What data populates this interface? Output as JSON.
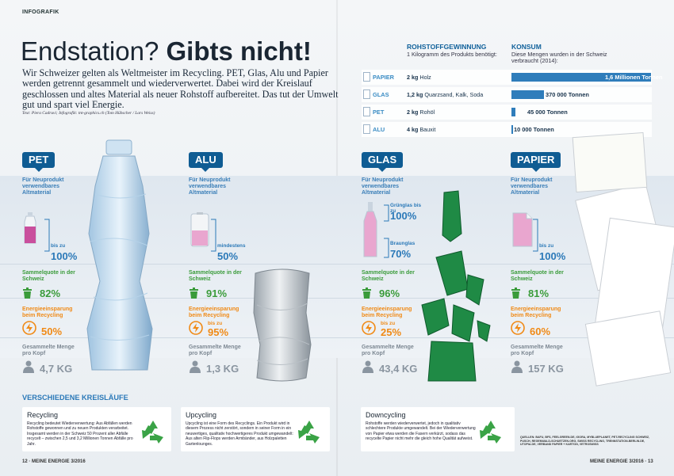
{
  "kicker": "INFOGRAFIK",
  "headline": {
    "part1": "Endstation?",
    "part2": "Gibts nicht!"
  },
  "lead": "Wir Schweizer gelten als Weltmeister im Recycling. PET, Glas, Alu und Papier werden getrennt gesammelt und wiederverwertet. Dabei wird der Kreislauf geschlossen und altes Material als neuer Rohstoff aufbereitet. Das tut der Umwelt gut und spart viel Energie.",
  "credit": "Text: Piera Cadruvi; Infografik: tnt-graphics.ch (Tom Hübscher / Lars Weiss)",
  "table": {
    "col1_title": "ROHSTOFFGEWINNUNG",
    "col1_sub": "1 Kilogramm des Produkts benötigt:",
    "col2_title": "KONSUM",
    "col2_sub": "Diese Mengen wurden in der Schweiz verbraucht (2014):",
    "rows": [
      {
        "label": "PAPIER",
        "amount": "2 kg",
        "material": "Holz",
        "consumption": "1,6 Millionen Tonnen",
        "tonnes": 1600000
      },
      {
        "label": "GLAS",
        "amount": "1,2 kg",
        "material": "Quarzsand, Kalk, Soda",
        "consumption": "370 000 Tonnen",
        "tonnes": 370000
      },
      {
        "label": "PET",
        "amount": "2 kg",
        "material": "Rohöl",
        "consumption": "45 000 Tonnen",
        "tonnes": 45000
      },
      {
        "label": "ALU",
        "amount": "4 kg",
        "material": "Bauxit",
        "consumption": "10 000 Tonnen",
        "tonnes": 10000
      }
    ]
  },
  "materials": [
    {
      "tag": "PET",
      "reuse_label": "Für Neuprodukt verwendbares Altmaterial",
      "reuse_prefix": "bis zu",
      "reuse_pct": "100%",
      "reuse_fill": 1.0,
      "quota_label": "Sammelquote in der Schweiz",
      "quota": "82%",
      "energy_label": "Energieeinsparung beim Recycling",
      "energy_prefix": "",
      "energy": "50%",
      "amount_label": "Gesammelte Menge pro Kopf",
      "amount": "4,7 KG"
    },
    {
      "tag": "ALU",
      "reuse_label": "Für Neuprodukt verwendbares Altmaterial",
      "reuse_prefix": "mindestens",
      "reuse_pct": "50%",
      "reuse_fill": 0.5,
      "quota_label": "Sammelquote in der Schweiz",
      "quota": "91%",
      "energy_label": "Energieeinsparung beim Recycling",
      "energy_prefix": "bis zu",
      "energy": "95%",
      "amount_label": "Gesammelte Menge pro Kopf",
      "amount": "1,3 KG"
    },
    {
      "tag": "GLAS",
      "reuse_label": "Für Neuprodukt verwendbares Altmaterial",
      "reuse_prefix": "Grünglas bis zu",
      "reuse_pct": "100%",
      "reuse_fill": 1.0,
      "reuse_extra_label": "Braunglas",
      "reuse_extra": "70%",
      "quota_label": "Sammelquote in der Schweiz",
      "quota": "96%",
      "energy_label": "Energieeinsparung beim Recycling",
      "energy_prefix": "bis zu",
      "energy": "25%",
      "amount_label": "Gesammelte Menge pro Kopf",
      "amount": "43,4 KG"
    },
    {
      "tag": "PAPIER",
      "reuse_label": "Für Neuprodukt verwendbares Altmaterial",
      "reuse_prefix": "bis zu",
      "reuse_pct": "100%",
      "reuse_fill": 1.0,
      "quota_label": "Sammelquote in der Schweiz",
      "quota": "81%",
      "energy_label": "Energieeinsparung beim Recycling",
      "energy_prefix": "",
      "energy": "60%",
      "amount_label": "Gesammelte Menge pro Kopf",
      "amount": "157 KG"
    }
  ],
  "cycles": {
    "title": "VERSCHIEDENE KREISLÄUFE",
    "items": [
      {
        "title": "Recycling",
        "text": "Recycling bedeutet Wiederverwertung: Aus Abfällen werden Rohstoffe gewonnen und zu neuen Produkten verarbeitet. Insgesamt werden in der Schweiz 50 Prozent aller Abfälle recycelt – zwischen 2,5 und 3,2 Millionen Tonnen Abfälle pro Jahr."
      },
      {
        "title": "Upcycling",
        "text": "Upcycling ist eine Form des Recyclings. Ein Produkt wird in diesem Prozess nicht zerstört, sondern in seiner Form in ein neuwertiges, qualitativ hochwertigeres Produkt umgewandelt: Aus alten Flip-Flops werden Armbänder, aus Holzpaletten Gartenlounges."
      },
      {
        "title": "Downcycling",
        "text": "Rohstoffe werden wiederverwertet, jedoch in qualitativ schlechtere Produkte umgewandelt. Bei der Wiederverwertung von Papier etwa werden die Fasern verkürzt, sodass das recycelte Papier nicht mehr die gleich hohe Qualität aufweist."
      }
    ]
  },
  "sources": "QUELLEN: BAFU, BFS, FEELGREEN.DE, IGORA, MYBLUEPLANET, PET-RECYCLING SCHWEIZ, PUSCH, REGENWALD-SCHUETZEN.ORG, SWISS RECYCLING, TRENNSTATION-BERLIN.DE, UTOPIA.DE, VERBAND PAPIER + KARTON, VETROSWISS",
  "footer": {
    "left": "12 · MEINE ENERGIE 3/2016",
    "right": "MEINE ENERGIE 3/2016 · 13"
  },
  "colors": {
    "brand_blue": "#0f5c93",
    "accent_blue": "#2b79b8",
    "green": "#3a9b3a",
    "orange": "#f08a16",
    "grey": "#8a95a0",
    "container_pink": "#e9a6cf"
  },
  "icons": [
    "bottle-icon",
    "can-icon",
    "glass-bottle-icon",
    "paper-sheet-icon",
    "bin-icon",
    "energy-icon",
    "person-icon",
    "recycle-icon",
    "document-icon"
  ]
}
